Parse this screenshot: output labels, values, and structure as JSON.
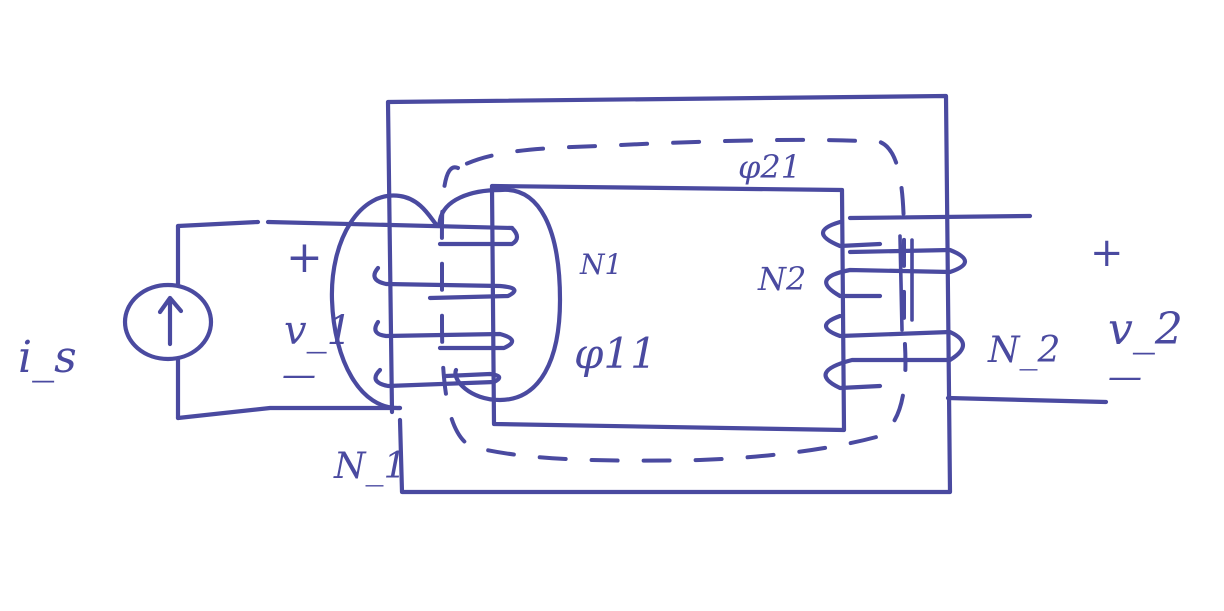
{
  "diagram": {
    "labels": {
      "source_current": "i_s",
      "primary_plus": "+",
      "primary_voltage": "v_1",
      "primary_minus": "—",
      "primary_turns": "N_1",
      "primary_coil_count": "N1",
      "flux_11": "φ11",
      "flux_21": "φ21",
      "secondary_coil_count": "N2",
      "secondary_turns": "N_2",
      "secondary_plus": "+",
      "secondary_voltage": "v_2",
      "secondary_minus": "—"
    },
    "colors": {
      "ink": "#4a4aa0",
      "background": "#ffffff"
    },
    "icons": {
      "source": "current-source-arrow-icon"
    }
  }
}
